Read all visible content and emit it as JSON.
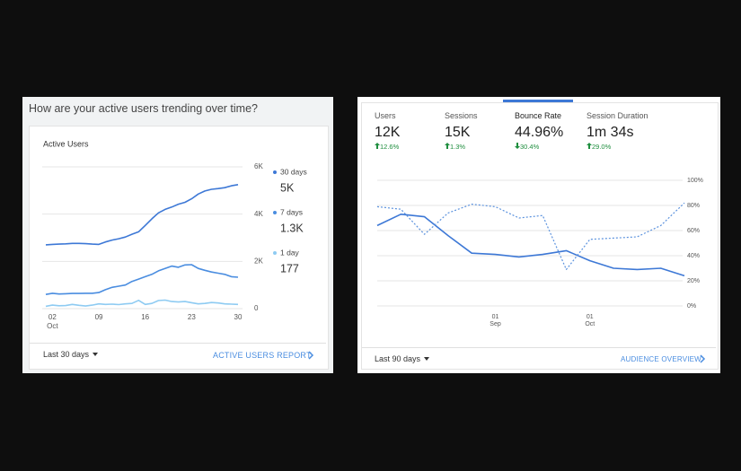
{
  "left_card": {
    "title": "How are your active users trending over time?",
    "footer": {
      "date_range": "Last 30 days",
      "link": "ACTIVE USERS REPORT"
    }
  },
  "right_card": {
    "metrics": [
      {
        "label": "Users",
        "value": "12K",
        "change": "12.6%"
      },
      {
        "label": "Sessions",
        "value": "15K",
        "change": "1.3%"
      },
      {
        "label": "Bounce Rate",
        "value": "44.96%",
        "change": "30.4%"
      },
      {
        "label": "Session Duration",
        "value": "1m 34s",
        "change": "29.0%"
      }
    ],
    "footer": {
      "date_range": "Last 90 days",
      "link": "AUDIENCE OVERVIEW"
    }
  },
  "chart_data": [
    {
      "type": "line",
      "title": "Active Users",
      "categories": [
        null,
        "02",
        null,
        null,
        null,
        null,
        null,
        null,
        "09",
        null,
        null,
        null,
        null,
        null,
        null,
        "16",
        null,
        null,
        null,
        null,
        null,
        null,
        "23",
        null,
        null,
        null,
        null,
        null,
        null,
        "30"
      ],
      "category_sublabels": [
        null,
        "Oct",
        null,
        null,
        null,
        null,
        null,
        null,
        null,
        null,
        null,
        null,
        null,
        null,
        null,
        null,
        null,
        null,
        null,
        null,
        null,
        null,
        null,
        null,
        null,
        null,
        null,
        null,
        null,
        null
      ],
      "series": [
        {
          "name": "30 days",
          "color": "#3d78d6",
          "latest_label": "5K",
          "values": [
            2700,
            2720,
            2730,
            2740,
            2760,
            2760,
            2750,
            2730,
            2720,
            2820,
            2900,
            2960,
            3030,
            3150,
            3250,
            3520,
            3800,
            4050,
            4200,
            4300,
            4420,
            4500,
            4650,
            4850,
            4980,
            5050,
            5080,
            5120,
            5200,
            5250
          ]
        },
        {
          "name": "7 days",
          "color": "#4a8de0",
          "latest_label": "1.3K",
          "values": [
            600,
            650,
            620,
            630,
            640,
            640,
            650,
            650,
            680,
            800,
            900,
            950,
            1000,
            1150,
            1250,
            1350,
            1450,
            1600,
            1700,
            1800,
            1750,
            1850,
            1860,
            1700,
            1620,
            1550,
            1500,
            1450,
            1350,
            1330
          ]
        },
        {
          "name": "1 day",
          "color": "#8ecbf2",
          "latest_label": "177",
          "values": [
            100,
            150,
            120,
            130,
            180,
            140,
            110,
            150,
            200,
            180,
            190,
            170,
            200,
            220,
            350,
            180,
            220,
            340,
            360,
            300,
            280,
            300,
            250,
            200,
            220,
            260,
            240,
            200,
            190,
            177
          ]
        }
      ],
      "ylim": [
        0,
        6000
      ],
      "yticks": [
        0,
        {
          "value": 2000,
          "label": "2K"
        },
        {
          "value": 4000,
          "label": "4K"
        },
        {
          "value": 6000,
          "label": "6K"
        }
      ],
      "grid": true
    },
    {
      "type": "line",
      "categories": [
        null,
        null,
        null,
        null,
        null,
        "01",
        null,
        null,
        null,
        "01",
        null,
        null,
        null,
        null
      ],
      "category_sublabels": [
        null,
        null,
        null,
        null,
        null,
        "Sep",
        null,
        null,
        null,
        "Oct",
        null,
        null,
        null,
        null
      ],
      "series": [
        {
          "color": "#3d78d6",
          "style": "solid",
          "values": [
            64,
            73,
            71,
            56,
            42,
            41,
            39,
            41,
            44,
            36,
            30,
            29,
            30,
            24
          ]
        },
        {
          "color": "#5b92de",
          "style": "dashed",
          "values": [
            79,
            77,
            57,
            74,
            81,
            79,
            70,
            72,
            29,
            53,
            54,
            55,
            64,
            82
          ]
        }
      ],
      "ylim": [
        0,
        100
      ],
      "yticks": [
        {
          "value": 0,
          "label": "0%"
        },
        {
          "value": 20,
          "label": "20%"
        },
        {
          "value": 40,
          "label": "40%"
        },
        {
          "value": 60,
          "label": "60%"
        },
        {
          "value": 80,
          "label": "80%"
        },
        {
          "value": 100,
          "label": "100%"
        }
      ],
      "grid": true
    }
  ]
}
